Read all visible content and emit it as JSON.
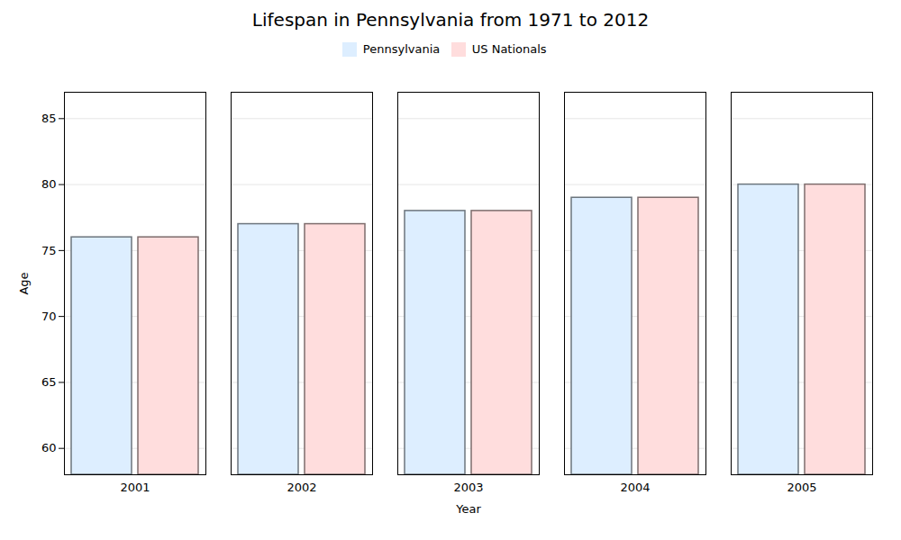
{
  "chart_data": {
    "type": "bar",
    "title": "Lifespan in Pennsylvania from 1971 to 2012",
    "xlabel": "Year",
    "ylabel": "Age",
    "categories": [
      "2001",
      "2002",
      "2003",
      "2004",
      "2005"
    ],
    "series": [
      {
        "name": "Pennsylvania",
        "color": "#ddeeff",
        "values": [
          76,
          77,
          78,
          79,
          80
        ]
      },
      {
        "name": "US Nationals",
        "color": "#ffdddd",
        "values": [
          76,
          77,
          78,
          79,
          80
        ]
      }
    ],
    "ylim": [
      58,
      87
    ],
    "yticks": [
      60,
      65,
      70,
      75,
      80,
      85
    ],
    "grid": true,
    "legend": "top"
  }
}
